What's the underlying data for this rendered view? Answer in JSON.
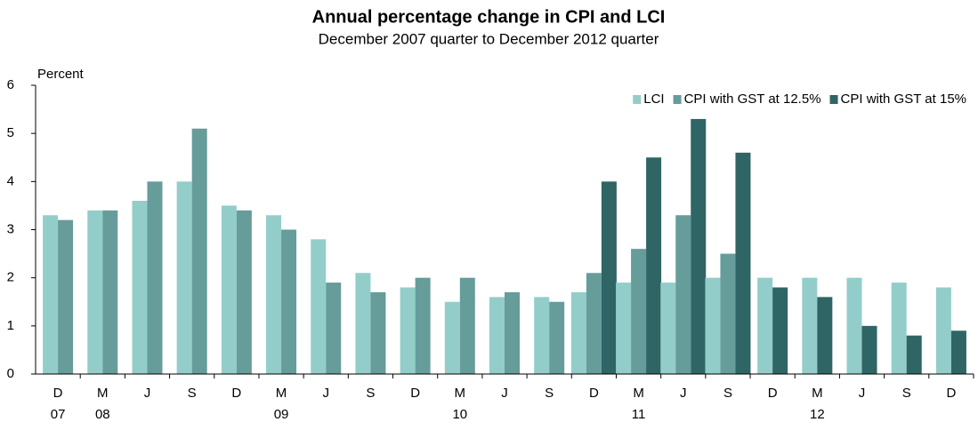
{
  "chart_data": {
    "type": "bar",
    "title": "Annual  percentage change in CPI and LCI",
    "subtitle": "December 2007  quarter to December  2012  quarter",
    "y_label": "Percent",
    "categories": [
      "D",
      "M",
      "J",
      "S",
      "D",
      "M",
      "J",
      "S",
      "D",
      "M",
      "J",
      "S",
      "D",
      "M",
      "J",
      "S",
      "D",
      "M",
      "J",
      "S",
      "D"
    ],
    "years": [
      "07",
      "08",
      null,
      null,
      null,
      "09",
      null,
      null,
      null,
      "10",
      null,
      null,
      null,
      "11",
      null,
      null,
      null,
      "12",
      null,
      null,
      null
    ],
    "series": [
      {
        "name": "LCI",
        "color": "#93cdc9",
        "values": [
          3.3,
          3.4,
          3.6,
          4.0,
          3.5,
          3.3,
          2.8,
          2.1,
          1.8,
          1.5,
          1.6,
          1.6,
          1.7,
          1.9,
          1.9,
          2.0,
          2.0,
          2.0,
          2.0,
          1.9,
          1.8
        ]
      },
      {
        "name": "CPI with GST at 12.5%",
        "color": "#669c9a",
        "values": [
          3.2,
          3.4,
          4.0,
          5.1,
          3.4,
          3.0,
          1.9,
          1.7,
          2.0,
          2.0,
          1.7,
          1.5,
          2.1,
          2.6,
          3.3,
          2.5,
          null,
          null,
          null,
          null,
          null
        ]
      },
      {
        "name": "CPI with GST at 15%",
        "color": "#2f6565",
        "values": [
          null,
          null,
          null,
          null,
          null,
          null,
          null,
          null,
          null,
          null,
          null,
          null,
          4.0,
          4.5,
          5.3,
          4.6,
          1.8,
          1.6,
          1.0,
          0.8,
          0.9
        ]
      }
    ],
    "ylim": [
      0,
      6
    ],
    "yticks": [
      0,
      1,
      2,
      3,
      4,
      5,
      6
    ],
    "grid": false,
    "legend": "upper-right"
  }
}
